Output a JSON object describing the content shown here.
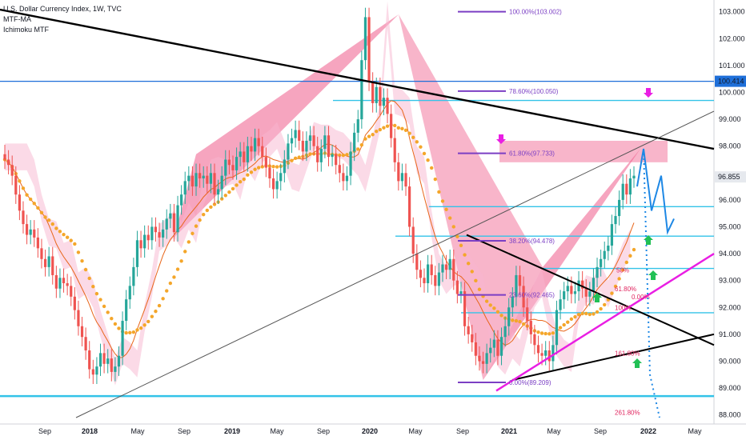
{
  "legend": {
    "title": "U.S. Dollar Currency Index, 1W, TVC",
    "indicator1": "MTF-MA",
    "indicator2": "Ichimoku MTF"
  },
  "colors": {
    "up_candle": "#26a69a",
    "down_candle": "#ef5350",
    "black_trend": "#000000",
    "blue_level": "#1e6fd9",
    "cyan_level": "#33c3e8",
    "fib": "#7b3fc4",
    "magenta_trend": "#e91ee3",
    "pattern_fill": "#ef5b8a",
    "price_badge": "#1e6fd9",
    "current_badge": "#e6e9ee",
    "ma_orange": "#f4a62a",
    "ma_darkorange": "#e8661a",
    "projection": "#1e88e5",
    "arrow_magenta": "#e91ee3",
    "arrow_green": "#22c055"
  },
  "chart_data": {
    "type": "candlestick",
    "title": "U.S. Dollar Currency Index, 1W, TVC",
    "x_tick_labels": [
      "Sep",
      "2018",
      "May",
      "Sep",
      "2019",
      "May",
      "Sep",
      "2020",
      "May",
      "Sep",
      "2021",
      "May",
      "Sep",
      "2022",
      "May"
    ],
    "y_tick_labels": [
      "103.000",
      "102.000",
      "101.000",
      "100.000",
      "99.000",
      "98.000",
      "96.000",
      "95.000",
      "94.000",
      "93.000",
      "92.000",
      "91.000",
      "90.000",
      "89.000",
      "88.000"
    ],
    "ylim": [
      87.9,
      103.2
    ],
    "price_labels": {
      "level": "100.414",
      "current": "96.855"
    },
    "fib_labels": [
      {
        "label": "100.00%(103.002)",
        "value": 103.002
      },
      {
        "label": "78.60%(100.050)",
        "value": 100.05
      },
      {
        "label": "61.80%(97.733)",
        "value": 97.733
      },
      {
        "label": "38.20%(94.478)",
        "value": 94.478
      },
      {
        "label": "23.60%(92.465)",
        "value": 92.465
      },
      {
        "label": "0.00%(89.209)",
        "value": 89.209
      }
    ],
    "pattern_labels": [
      "0.00%",
      "50%",
      "61.80%",
      "100%",
      "161.80%",
      "261.80%"
    ],
    "weekly_closes": [
      97.5,
      97.3,
      96.9,
      96.2,
      95.6,
      95.1,
      94.7,
      94.9,
      94.6,
      94.2,
      93.8,
      93.5,
      93.9,
      93.2,
      92.7,
      93.1,
      92.9,
      92.8,
      92.4,
      91.9,
      91.3,
      90.9,
      90.4,
      89.7,
      89.5,
      89.8,
      90.3,
      89.9,
      90.1,
      89.6,
      89.8,
      90.2,
      91.5,
      92.3,
      92.8,
      93.5,
      94.5,
      94.2,
      94.7,
      94.5,
      95.0,
      94.8,
      94.6,
      94.9,
      95.3,
      95.5,
      94.8,
      95.8,
      96.2,
      96.7,
      96.9,
      96.5,
      97.0,
      96.8,
      96.9,
      96.6,
      97.0,
      96.2,
      96.4,
      96.9,
      97.5,
      97.3,
      97.1,
      97.6,
      97.8,
      97.4,
      98.0,
      97.8,
      98.3,
      98.0,
      97.6,
      97.2,
      96.8,
      96.4,
      96.7,
      97.0,
      97.5,
      98.1,
      98.3,
      98.6,
      98.2,
      97.8,
      98.2,
      98.4,
      98.0,
      97.4,
      97.9,
      98.4,
      97.6,
      97.7,
      97.3,
      97.0,
      96.7,
      96.9,
      97.8,
      98.5,
      99.0,
      101.2,
      102.8,
      100.4,
      99.6,
      100.2,
      99.5,
      99.8,
      99.2,
      98.3,
      97.4,
      96.7,
      97.0,
      96.5,
      95.0,
      94.0,
      93.4,
      93.1,
      92.9,
      93.6,
      93.2,
      92.8,
      93.3,
      93.6,
      93.4,
      93.8,
      93.0,
      92.5,
      92.6,
      91.3,
      91.0,
      90.7,
      90.2,
      90.0,
      89.9,
      90.3,
      90.5,
      90.8,
      90.2,
      90.9,
      91.3,
      92.0,
      92.4,
      93.2,
      92.8,
      92.0,
      91.5,
      91.0,
      90.6,
      90.3,
      90.2,
      90.4,
      90.0,
      90.6,
      91.9,
      92.3,
      92.6,
      92.8,
      92.5,
      92.6,
      93.0,
      92.7,
      92.4,
      92.6,
      93.1,
      93.5,
      93.8,
      94.1,
      94.3,
      95.1,
      95.4,
      96.0,
      96.6,
      96.2,
      96.8,
      96.9
    ]
  }
}
